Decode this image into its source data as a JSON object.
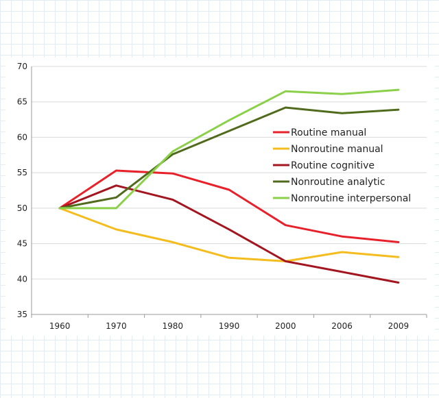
{
  "chart_data": {
    "type": "line",
    "title": "",
    "xlabel": "",
    "ylabel": "",
    "categories": [
      "1960",
      "1970",
      "1980",
      "1990",
      "2000",
      "2006",
      "2009"
    ],
    "ylim": [
      35,
      70
    ],
    "yticks": [
      35,
      40,
      45,
      50,
      55,
      60,
      65,
      70
    ],
    "grid": "horizontal",
    "legend_position": "right",
    "series": [
      {
        "name": "Routine manual",
        "color": "#e8202a",
        "values": [
          50,
          55.3,
          54.9,
          52.6,
          47.6,
          46.0,
          45.2
        ]
      },
      {
        "name": "Nonroutine manual",
        "color": "#f4bc1c",
        "values": [
          50,
          47.0,
          45.2,
          43.0,
          42.5,
          43.8,
          43.1
        ]
      },
      {
        "name": "Routine cognitive",
        "color": "#a3151f",
        "values": [
          50,
          53.2,
          51.2,
          47.0,
          42.5,
          41.0,
          39.5
        ]
      },
      {
        "name": "Nonroutine analytic",
        "color": "#4f6b1b",
        "values": [
          50,
          51.5,
          57.6,
          60.9,
          64.2,
          63.4,
          63.9
        ]
      },
      {
        "name": "Nonroutine interpersonal",
        "color": "#8bd049",
        "values": [
          50,
          50.0,
          58.0,
          62.4,
          66.5,
          66.1,
          66.7
        ]
      }
    ]
  }
}
